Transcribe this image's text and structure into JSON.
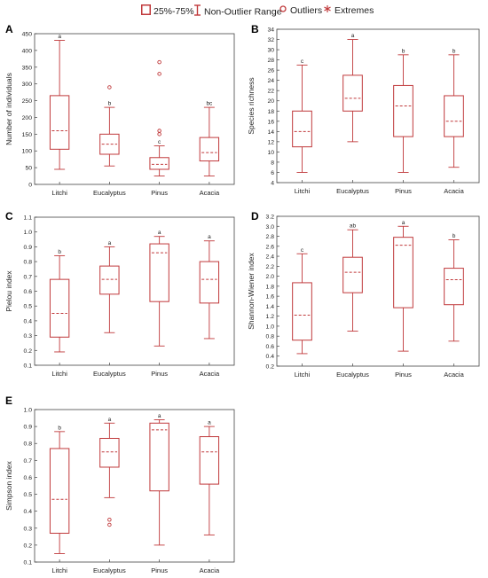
{
  "legend": {
    "box_label": "25%-75%",
    "range_label": "Non-Outlier Range",
    "outlier_label": "Outliers",
    "extreme_label": "Extremes"
  },
  "colors": {
    "stroke": "#c0393b",
    "axis": "#444444",
    "text": "#222222"
  },
  "chart_data": [
    {
      "type": "box",
      "panel_label": "A",
      "ylabel": "Number of individuals",
      "ylim": [
        0,
        450
      ],
      "yticks": [
        0,
        50,
        100,
        150,
        200,
        250,
        300,
        350,
        400,
        450
      ],
      "categories": [
        "Litchi",
        "Eucalyptus",
        "Pinus",
        "Acacia"
      ],
      "boxes": [
        {
          "category": "Litchi",
          "min": 45,
          "q1": 105,
          "median": 160,
          "q3": 265,
          "max": 430,
          "letter": "a",
          "outliers": []
        },
        {
          "category": "Eucalyptus",
          "min": 55,
          "q1": 90,
          "median": 120,
          "q3": 150,
          "max": 230,
          "letter": "b",
          "outliers": [
            290
          ]
        },
        {
          "category": "Pinus",
          "min": 25,
          "q1": 45,
          "median": 60,
          "q3": 80,
          "max": 115,
          "letter": "c",
          "outliers": [
            365,
            330,
            160,
            150
          ]
        },
        {
          "category": "Acacia",
          "min": 25,
          "q1": 70,
          "median": 95,
          "q3": 140,
          "max": 230,
          "letter": "bc",
          "outliers": []
        }
      ]
    },
    {
      "type": "box",
      "panel_label": "B",
      "ylabel": "Species richness",
      "ylim": [
        4,
        34
      ],
      "yticks": [
        4,
        6,
        8,
        10,
        12,
        14,
        16,
        18,
        20,
        22,
        24,
        26,
        28,
        30,
        32,
        34
      ],
      "categories": [
        "Litchi",
        "Eucalyptus",
        "Pinus",
        "Acacia"
      ],
      "boxes": [
        {
          "category": "Litchi",
          "min": 6,
          "q1": 11,
          "median": 14,
          "q3": 18,
          "max": 27,
          "letter": "c",
          "outliers": []
        },
        {
          "category": "Eucalyptus",
          "min": 12,
          "q1": 18,
          "median": 20.5,
          "q3": 25,
          "max": 32,
          "letter": "a",
          "outliers": []
        },
        {
          "category": "Pinus",
          "min": 6,
          "q1": 13,
          "median": 19,
          "q3": 23,
          "max": 29,
          "letter": "b",
          "outliers": []
        },
        {
          "category": "Acacia",
          "min": 7,
          "q1": 13,
          "median": 16,
          "q3": 21,
          "max": 29,
          "letter": "b",
          "outliers": []
        }
      ]
    },
    {
      "type": "box",
      "panel_label": "C",
      "ylabel": "Pielou index",
      "ylim": [
        0.1,
        1.1
      ],
      "yticks": [
        0.1,
        0.2,
        0.3,
        0.4,
        0.5,
        0.6,
        0.7,
        0.8,
        0.9,
        1.0,
        1.1
      ],
      "categories": [
        "Litchi",
        "Eucalyptus",
        "Pinus",
        "Acacia"
      ],
      "boxes": [
        {
          "category": "Litchi",
          "min": 0.19,
          "q1": 0.29,
          "median": 0.45,
          "q3": 0.68,
          "max": 0.84,
          "letter": "b",
          "outliers": []
        },
        {
          "category": "Eucalyptus",
          "min": 0.32,
          "q1": 0.58,
          "median": 0.68,
          "q3": 0.77,
          "max": 0.9,
          "letter": "a",
          "outliers": []
        },
        {
          "category": "Pinus",
          "min": 0.23,
          "q1": 0.53,
          "median": 0.86,
          "q3": 0.92,
          "max": 0.97,
          "letter": "a",
          "outliers": []
        },
        {
          "category": "Acacia",
          "min": 0.28,
          "q1": 0.52,
          "median": 0.68,
          "q3": 0.8,
          "max": 0.94,
          "letter": "a",
          "outliers": []
        }
      ]
    },
    {
      "type": "box",
      "panel_label": "D",
      "ylabel": "Shannon-Wiener index",
      "ylim": [
        0.2,
        3.2
      ],
      "yticks": [
        0.2,
        0.4,
        0.6,
        0.8,
        1.0,
        1.2,
        1.4,
        1.6,
        1.8,
        2.0,
        2.2,
        2.4,
        2.6,
        2.8,
        3.0,
        3.2
      ],
      "categories": [
        "Litchi",
        "Eucalyptus",
        "Pinus",
        "Acacia"
      ],
      "boxes": [
        {
          "category": "Litchi",
          "min": 0.45,
          "q1": 0.72,
          "median": 1.22,
          "q3": 1.87,
          "max": 2.45,
          "letter": "c",
          "outliers": []
        },
        {
          "category": "Eucalyptus",
          "min": 0.9,
          "q1": 1.67,
          "median": 2.08,
          "q3": 2.38,
          "max": 2.93,
          "letter": "ab",
          "outliers": []
        },
        {
          "category": "Pinus",
          "min": 0.5,
          "q1": 1.37,
          "median": 2.62,
          "q3": 2.78,
          "max": 3.0,
          "letter": "a",
          "outliers": []
        },
        {
          "category": "Acacia",
          "min": 0.7,
          "q1": 1.43,
          "median": 1.93,
          "q3": 2.16,
          "max": 2.73,
          "letter": "b",
          "outliers": []
        }
      ]
    },
    {
      "type": "box",
      "panel_label": "E",
      "ylabel": "Simpson index",
      "ylim": [
        0.1,
        1.0
      ],
      "yticks": [
        0.1,
        0.2,
        0.3,
        0.4,
        0.5,
        0.6,
        0.7,
        0.8,
        0.9,
        1.0
      ],
      "categories": [
        "Litchi",
        "Eucalyptus",
        "Pinus",
        "Acacia"
      ],
      "boxes": [
        {
          "category": "Litchi",
          "min": 0.15,
          "q1": 0.27,
          "median": 0.47,
          "q3": 0.77,
          "max": 0.87,
          "letter": "b",
          "outliers": []
        },
        {
          "category": "Eucalyptus",
          "min": 0.48,
          "q1": 0.66,
          "median": 0.75,
          "q3": 0.83,
          "max": 0.92,
          "letter": "a",
          "outliers": [
            0.35,
            0.32
          ]
        },
        {
          "category": "Pinus",
          "min": 0.2,
          "q1": 0.52,
          "median": 0.88,
          "q3": 0.92,
          "max": 0.94,
          "letter": "a",
          "outliers": []
        },
        {
          "category": "Acacia",
          "min": 0.26,
          "q1": 0.56,
          "median": 0.75,
          "q3": 0.84,
          "max": 0.9,
          "letter": "a",
          "outliers": []
        }
      ]
    }
  ]
}
